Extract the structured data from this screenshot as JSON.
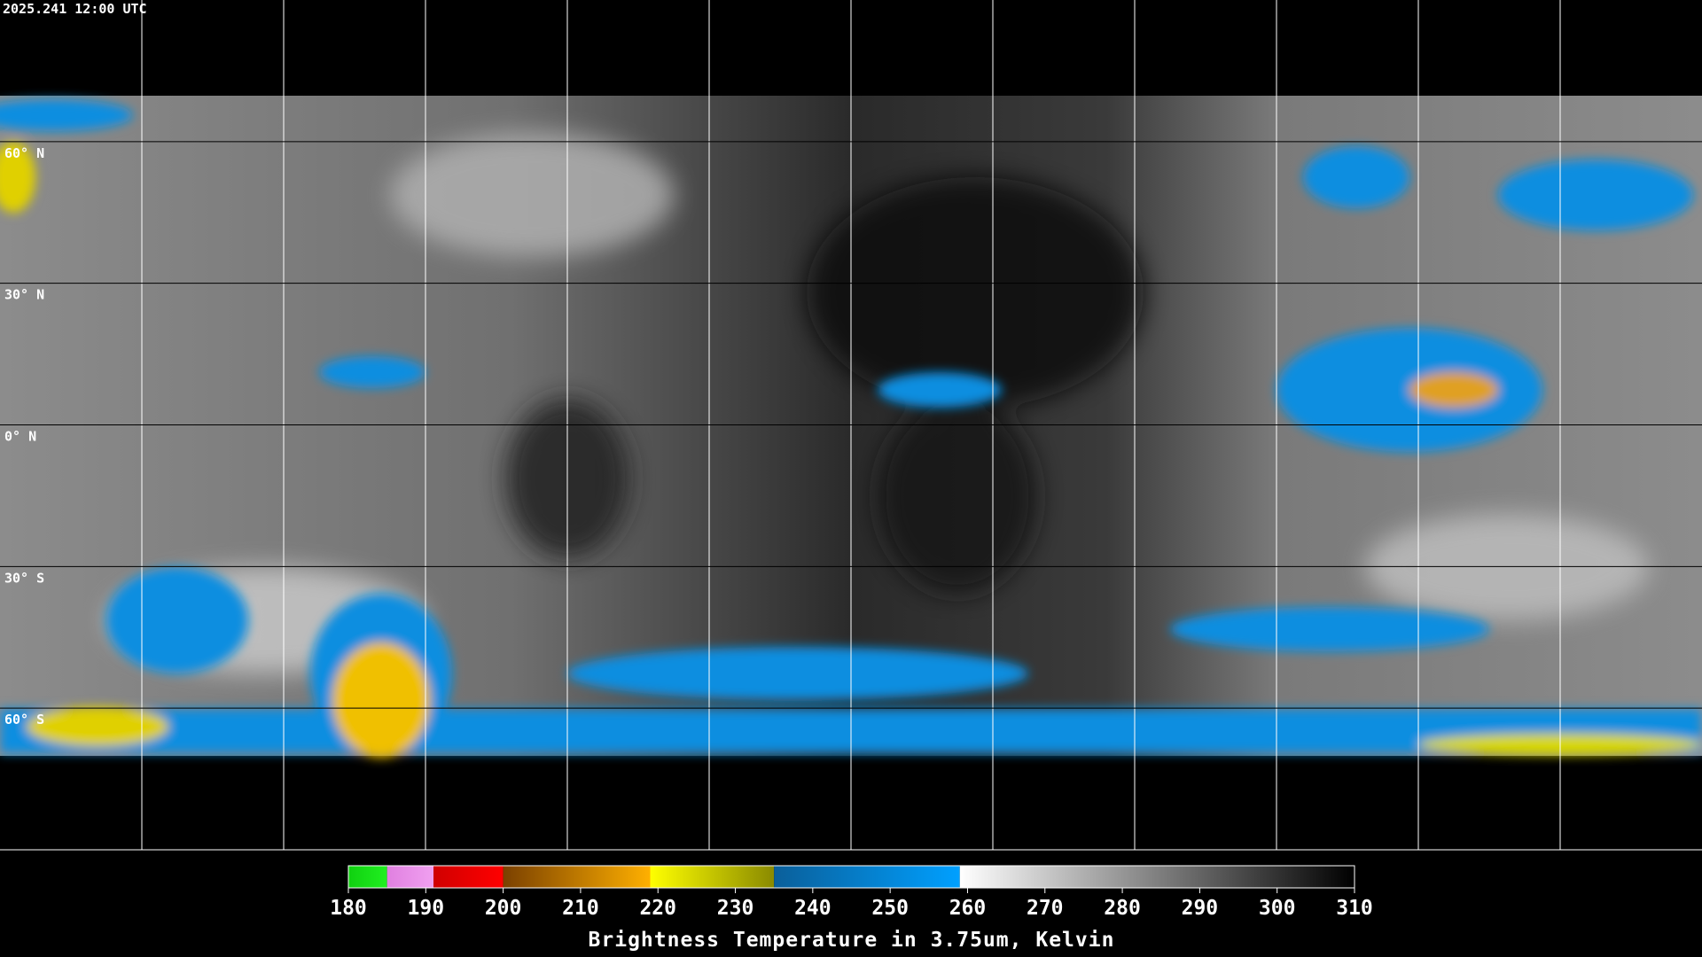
{
  "map": {
    "timestamp": "2025.241 12:00 UTC",
    "lon_range": [
      -180,
      180
    ],
    "lat_range": [
      90,
      -90
    ],
    "lon_lines": [
      -150,
      -120,
      -90,
      -60,
      -30,
      0,
      30,
      60,
      90,
      120,
      150
    ],
    "lat_lines": [
      {
        "value": 60,
        "label": "60° N"
      },
      {
        "value": 30,
        "label": "30° N"
      },
      {
        "value": 0,
        "label": "0° N"
      },
      {
        "value": -30,
        "label": "30° S"
      },
      {
        "value": -60,
        "label": "60° S"
      }
    ]
  },
  "colorbar": {
    "range": [
      180,
      310
    ],
    "ticks": [
      180,
      190,
      200,
      210,
      220,
      230,
      240,
      250,
      260,
      270,
      280,
      290,
      300,
      310
    ],
    "label": "Brightness Temperature in 3.75um, Kelvin",
    "segments": [
      {
        "from": 180,
        "to": 185,
        "colors": [
          "#10d010",
          "#20f020"
        ]
      },
      {
        "from": 185,
        "to": 191,
        "colors": [
          "#e080e0",
          "#f0a0f0"
        ]
      },
      {
        "from": 191,
        "to": 200,
        "colors": [
          "#d00000",
          "#ff0000"
        ]
      },
      {
        "from": 200,
        "to": 219,
        "colors": [
          "#7a4000",
          "#ffb000"
        ]
      },
      {
        "from": 219,
        "to": 235,
        "colors": [
          "#ffff00",
          "#8a8a00"
        ]
      },
      {
        "from": 235,
        "to": 259,
        "colors": [
          "#0a5f9a",
          "#00a0ff"
        ]
      },
      {
        "from": 259,
        "to": 310,
        "colors": [
          "#ffffff",
          "#000000"
        ]
      }
    ]
  }
}
